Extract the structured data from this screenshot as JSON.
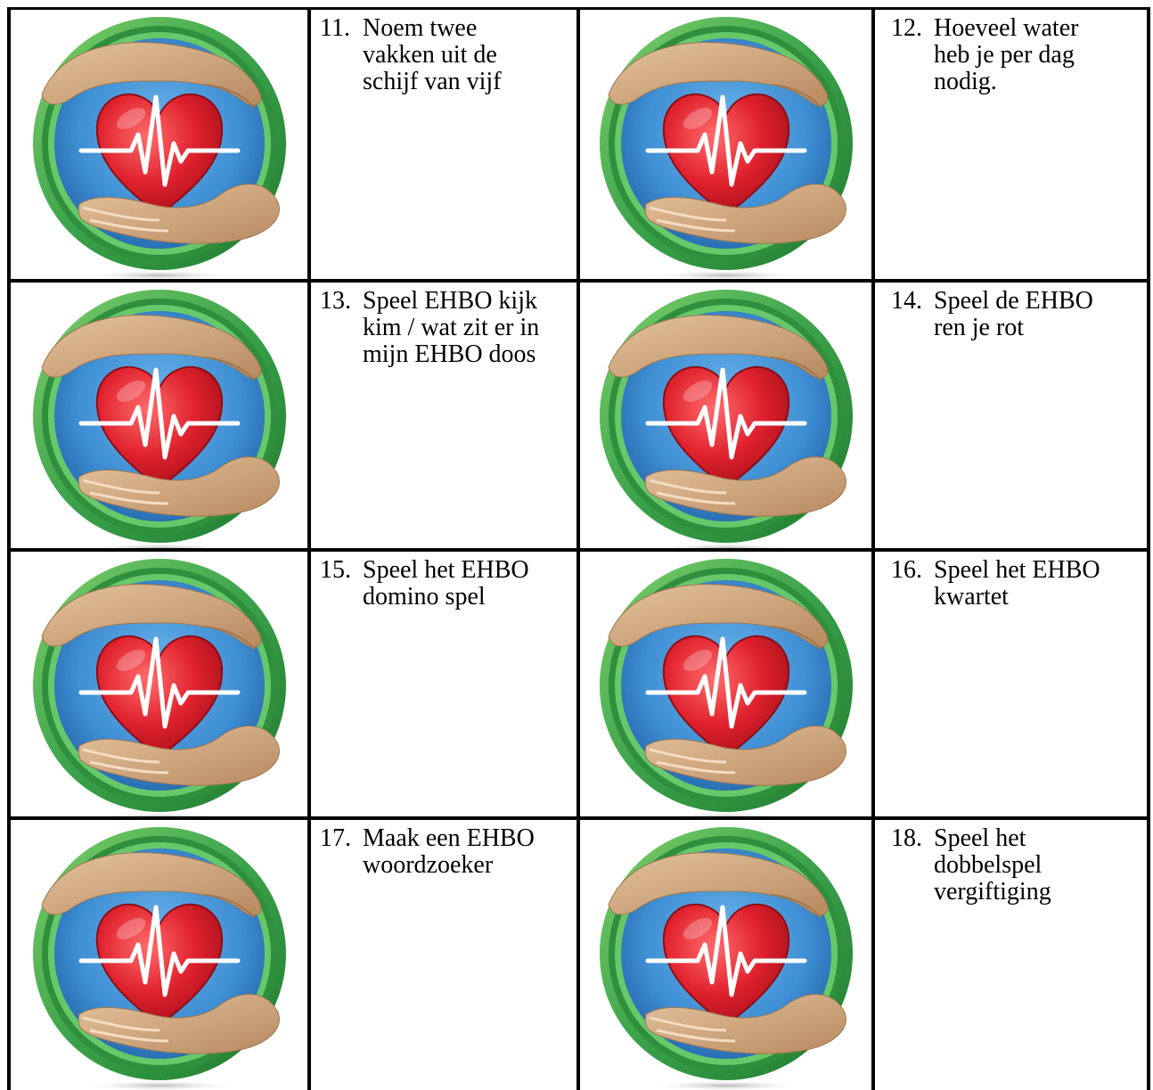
{
  "items": [
    {
      "number": "11.",
      "text": "Noem twee vakken uit de schijf van vijf"
    },
    {
      "number": "12.",
      "text": "Hoeveel water heb je per dag nodig."
    },
    {
      "number": "13.",
      "text": "Speel EHBO kijk kim / wat zit er in mijn EHBO doos"
    },
    {
      "number": "14.",
      "text": "Speel de EHBO ren je rot"
    },
    {
      "number": "15.",
      "text": "Speel het EHBO domino spel"
    },
    {
      "number": "16.",
      "text": "Speel het EHBO kwartet"
    },
    {
      "number": "17.",
      "text": "Maak een EHBO woordzoeker"
    },
    {
      "number": "18.",
      "text": "Speel het dobbelspel vergiftiging"
    }
  ],
  "logo": {
    "icon": "heart-in-hands-icon",
    "colors": {
      "ring_outer": "#2e8b3a",
      "ring_inner": "#5cc25a",
      "disc": "#3f8fd4",
      "heart": "#d91e2a",
      "pulse": "#ffffff",
      "hand": "#c8a27a"
    }
  }
}
